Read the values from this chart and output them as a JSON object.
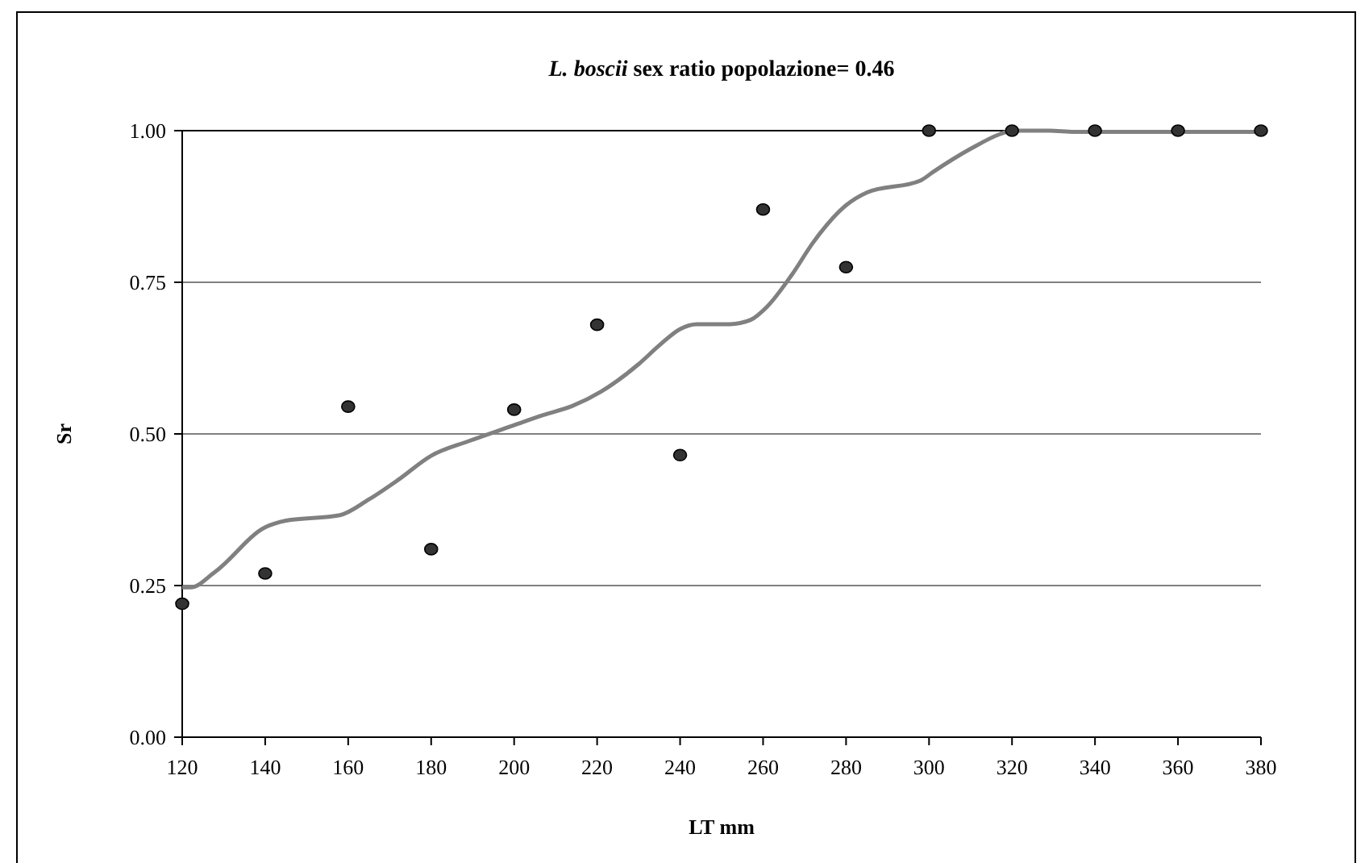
{
  "chart_data": {
    "type": "scatter",
    "title": "L. boscii sex ratio popolazione= 0.46",
    "xlabel": "LT mm",
    "ylabel": "Sr",
    "xlim": [
      120,
      380
    ],
    "xticks": [
      120,
      140,
      160,
      180,
      200,
      220,
      240,
      260,
      280,
      300,
      320,
      340,
      360,
      380
    ],
    "ylim": [
      0,
      1
    ],
    "yticks": [
      {
        "value": 0,
        "label": "0.00"
      },
      {
        "value": 0.25,
        "label": "0.25"
      },
      {
        "value": 0.5,
        "label": "0.50"
      },
      {
        "value": 0.75,
        "label": "0.75"
      },
      {
        "value": 1,
        "label": "1.00"
      }
    ],
    "grid": "y",
    "series": [
      {
        "color": "#333333",
        "marker": "circle",
        "x": [
          120,
          140,
          160,
          180,
          200,
          220,
          240,
          260,
          280,
          300,
          320,
          340,
          360,
          380
        ],
        "values": [
          0.22,
          0.27,
          0.545,
          0.31,
          0.54,
          0.68,
          0.465,
          0.87,
          0.775,
          1,
          1,
          1,
          1,
          1
        ]
      },
      {
        "type": "line",
        "color": "#808080",
        "marker": "none",
        "line_style": "solid",
        "x": [
          120,
          122,
          128,
          140,
          145,
          158,
          165,
          172,
          180,
          189,
          199,
          207,
          214,
          221,
          230,
          235,
          240,
          244,
          252,
          257,
          261,
          267,
          272,
          280,
          285,
          298,
          301,
          310,
          317,
          320,
          329,
          335,
          380
        ],
        "values": [
          0.247,
          0.247,
          0.273,
          0.346,
          0.357,
          0.366,
          0.392,
          0.424,
          0.464,
          0.488,
          0.512,
          0.531,
          0.546,
          0.57,
          0.615,
          0.646,
          0.673,
          0.681,
          0.681,
          0.688,
          0.71,
          0.763,
          0.815,
          0.877,
          0.898,
          0.918,
          0.932,
          0.97,
          0.994,
          1,
          1,
          0.998,
          0.998
        ]
      }
    ]
  }
}
